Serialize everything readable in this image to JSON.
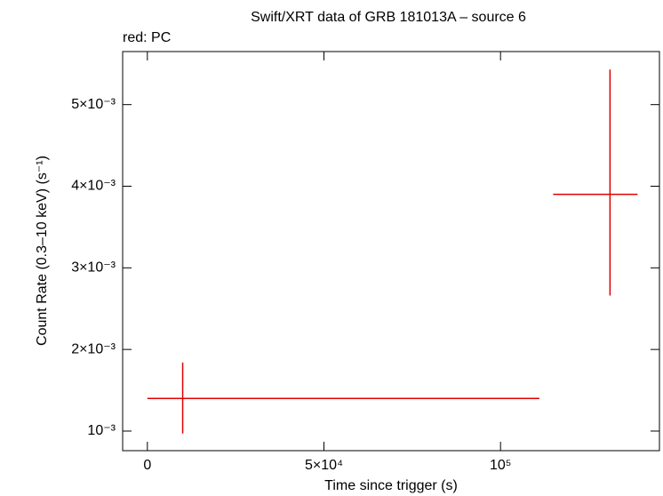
{
  "chart_data": {
    "type": "errorbar",
    "title": "Swift/XRT data of GRB 181013A – source 6",
    "annotation": "red: PC",
    "x_label": "Time since trigger (s)",
    "y_label": "Count Rate (0.3–10 keV) (s⁻¹)",
    "xlim": [
      -7000,
      145000
    ],
    "xticks": [
      0,
      {
        "value": 50000,
        "label": "5×10⁴"
      },
      {
        "value": 100000,
        "label": "10⁵"
      }
    ],
    "ylim": [
      0.00076,
      0.00565
    ],
    "yticks": [
      {
        "value": 0.001,
        "label": "10⁻³"
      },
      {
        "value": 0.002,
        "label": "2×10⁻³"
      },
      {
        "value": 0.003,
        "label": "3×10⁻³"
      },
      {
        "value": 0.004,
        "label": "4×10⁻³"
      },
      {
        "value": 0.005,
        "label": "5×10⁻³"
      }
    ],
    "series": [
      {
        "color": "#e00000",
        "x": [
          10000,
          131000
        ],
        "x_err_minus": [
          10000,
          16100
        ],
        "x_err_plus": [
          101000,
          7800
        ],
        "values": [
          0.0014,
          0.0039
        ],
        "y_err_minus": [
          0.00043,
          0.00124
        ],
        "y_err_plus": [
          0.00044,
          0.00153
        ]
      }
    ]
  }
}
